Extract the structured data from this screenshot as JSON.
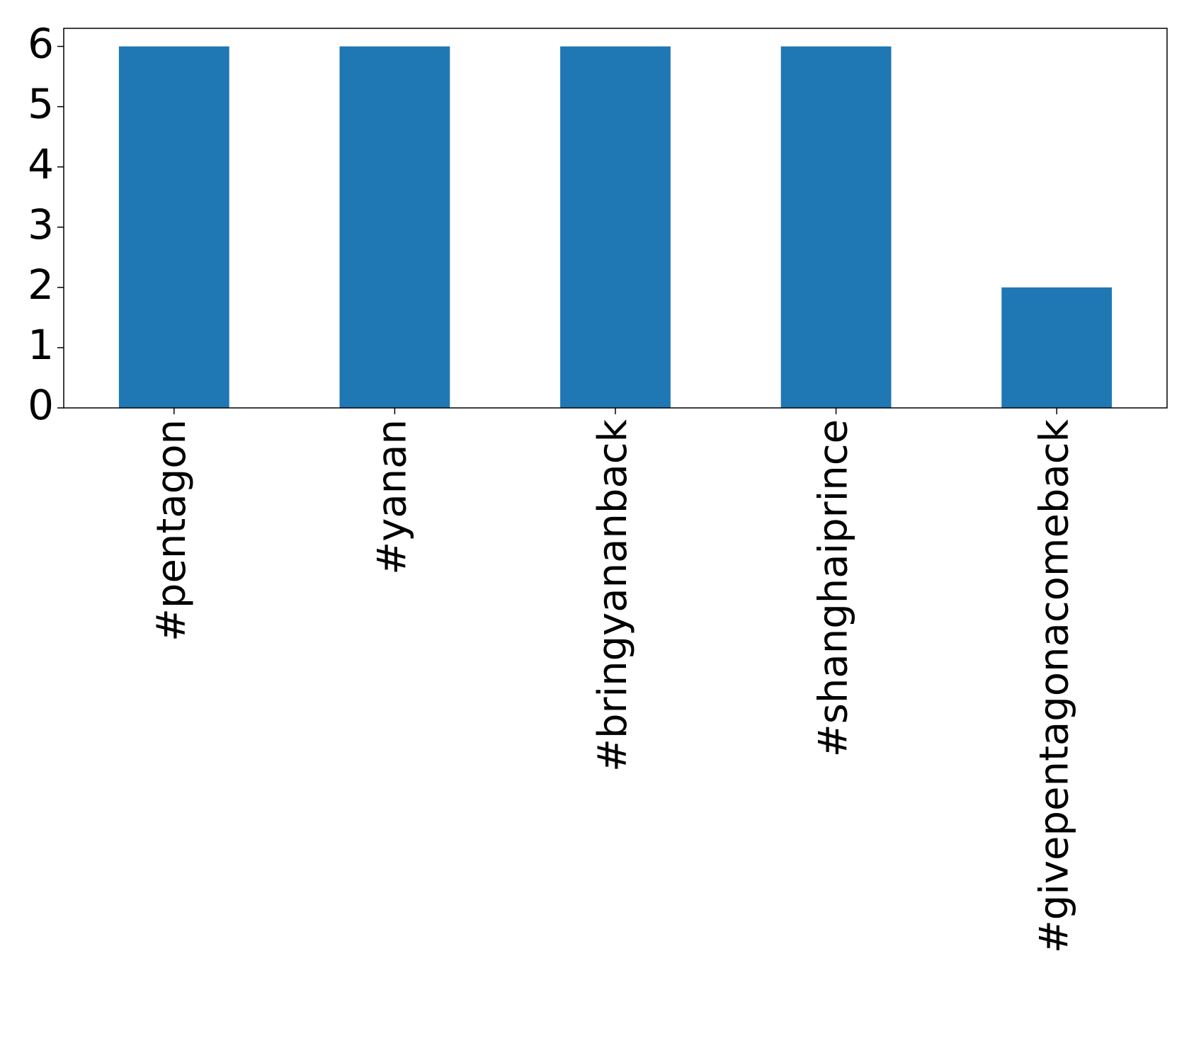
{
  "chart_data": {
    "type": "bar",
    "categories": [
      "#pentagon",
      "#yanan",
      "#bringyananback",
      "#shanghaiprince",
      "#givepentagonacomeback"
    ],
    "values": [
      6,
      6,
      6,
      6,
      2
    ],
    "color": "#1f77b4",
    "ylim": [
      0,
      6.3
    ],
    "yticks": [
      0,
      1,
      2,
      3,
      4,
      5,
      6
    ]
  }
}
